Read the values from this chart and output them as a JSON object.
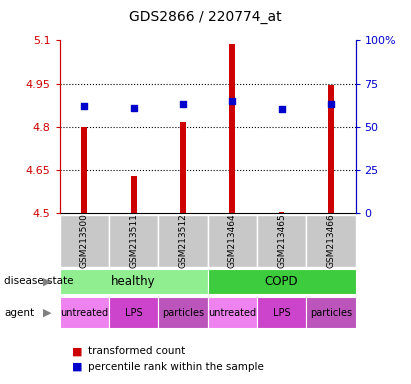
{
  "title": "GDS2866 / 220774_at",
  "samples": [
    "GSM213500",
    "GSM213511",
    "GSM213512",
    "GSM213464",
    "GSM213465",
    "GSM213466"
  ],
  "bar_values": [
    4.8,
    4.63,
    4.815,
    5.087,
    4.505,
    4.945
  ],
  "bar_bottom": 4.5,
  "percentile_values": [
    62,
    61,
    63,
    65,
    60,
    63
  ],
  "ylim_left": [
    4.5,
    5.1
  ],
  "yticks_left": [
    4.5,
    4.65,
    4.8,
    4.95,
    5.1
  ],
  "yticks_right": [
    0,
    25,
    50,
    75,
    100
  ],
  "disease_state": [
    {
      "label": "healthy",
      "span": [
        0,
        3
      ],
      "color": "#90EE90"
    },
    {
      "label": "COPD",
      "span": [
        3,
        6
      ],
      "color": "#3DCC3D"
    }
  ],
  "agent": [
    {
      "label": "untreated",
      "span": [
        0,
        1
      ],
      "color": "#EE82EE"
    },
    {
      "label": "LPS",
      "span": [
        1,
        2
      ],
      "color": "#CC44CC"
    },
    {
      "label": "particles",
      "span": [
        2,
        3
      ],
      "color": "#BB55BB"
    },
    {
      "label": "untreated",
      "span": [
        3,
        4
      ],
      "color": "#EE82EE"
    },
    {
      "label": "LPS",
      "span": [
        4,
        5
      ],
      "color": "#CC44CC"
    },
    {
      "label": "particles",
      "span": [
        5,
        6
      ],
      "color": "#BB55BB"
    }
  ],
  "bar_color": "#CC0000",
  "dot_color": "#0000CC",
  "left_axis_color": "#CC0000",
  "right_axis_color": "#0000CC",
  "background_color": "#FFFFFF",
  "sample_bg_color": "#C8C8C8",
  "chart_bg_color": "#FFFFFF"
}
